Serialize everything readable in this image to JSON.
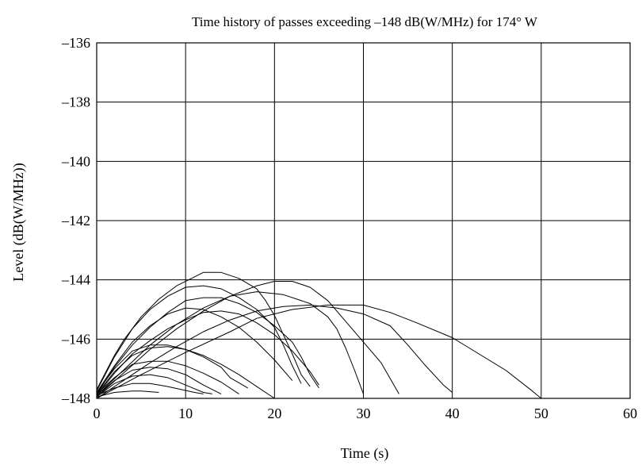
{
  "chart_data": {
    "type": "line",
    "title": "Time history of passes exceeding –148 dB(W/MHz) for 174° W",
    "xlabel": "Time (s)",
    "ylabel": "Level (dB(W/MHz))",
    "xlim": [
      0,
      60
    ],
    "ylim": [
      -148,
      -136
    ],
    "xticks": [
      0,
      10,
      20,
      30,
      40,
      50,
      60
    ],
    "yticks": [
      -148,
      -146,
      -144,
      -142,
      -140,
      -138,
      -136
    ],
    "xtick_labels": [
      "0",
      "10",
      "20",
      "30",
      "40",
      "50",
      "60"
    ],
    "ytick_labels": [
      "–148",
      "–146",
      "–144",
      "–142",
      "–140",
      "–138",
      "–136"
    ],
    "grid": true,
    "legend": "none",
    "series": [
      {
        "points": [
          [
            0,
            -147.95
          ],
          [
            2,
            -147.8
          ],
          [
            4,
            -147.75
          ],
          [
            5,
            -147.75
          ],
          [
            7,
            -147.8
          ]
        ]
      },
      {
        "points": [
          [
            0,
            -147.9
          ],
          [
            2,
            -147.65
          ],
          [
            4,
            -147.5
          ],
          [
            6,
            -147.5
          ],
          [
            8,
            -147.6
          ],
          [
            11,
            -147.8
          ],
          [
            12,
            -147.85
          ]
        ]
      },
      {
        "points": [
          [
            0,
            -147.95
          ],
          [
            2,
            -147.5
          ],
          [
            4,
            -147.25
          ],
          [
            6,
            -147.2
          ],
          [
            8,
            -147.3
          ],
          [
            10,
            -147.55
          ],
          [
            12,
            -147.8
          ],
          [
            13,
            -147.85
          ]
        ]
      },
      {
        "points": [
          [
            0,
            -147.9
          ],
          [
            2,
            -147.4
          ],
          [
            4,
            -147.05
          ],
          [
            6,
            -146.95
          ],
          [
            8,
            -147.0
          ],
          [
            10,
            -147.2
          ],
          [
            12,
            -147.55
          ],
          [
            14,
            -147.85
          ]
        ]
      },
      {
        "points": [
          [
            0,
            -147.85
          ],
          [
            2,
            -147.3
          ],
          [
            4,
            -146.85
          ],
          [
            6,
            -146.75
          ],
          [
            8,
            -146.75
          ],
          [
            10,
            -146.9
          ],
          [
            12,
            -147.15
          ],
          [
            14,
            -147.45
          ],
          [
            16,
            -147.85
          ]
        ]
      },
      {
        "points": [
          [
            0,
            -147.85
          ],
          [
            2,
            -147.1
          ],
          [
            4,
            -146.55
          ],
          [
            6,
            -146.3
          ],
          [
            8,
            -146.25
          ],
          [
            10,
            -146.35
          ],
          [
            12,
            -146.6
          ],
          [
            14,
            -146.95
          ],
          [
            15,
            -147.3
          ],
          [
            17,
            -147.65
          ]
        ]
      },
      {
        "points": [
          [
            0,
            -147.8
          ],
          [
            2,
            -147.0
          ],
          [
            4,
            -146.4
          ],
          [
            6,
            -146.2
          ],
          [
            8,
            -146.2
          ],
          [
            10,
            -146.35
          ],
          [
            12,
            -146.55
          ],
          [
            14,
            -146.85
          ],
          [
            16,
            -147.2
          ],
          [
            18,
            -147.6
          ],
          [
            20,
            -148.0
          ]
        ]
      },
      {
        "points": [
          [
            0,
            -147.8
          ],
          [
            2,
            -146.9
          ],
          [
            4,
            -146.1
          ],
          [
            6,
            -145.55
          ],
          [
            8,
            -145.15
          ],
          [
            10,
            -144.95
          ],
          [
            12,
            -145.0
          ],
          [
            14,
            -145.25
          ],
          [
            16,
            -145.6
          ],
          [
            18,
            -146.1
          ],
          [
            20,
            -146.7
          ],
          [
            22,
            -147.4
          ]
        ]
      },
      {
        "points": [
          [
            0,
            -147.9
          ],
          [
            2,
            -147.15
          ],
          [
            4,
            -146.5
          ],
          [
            6,
            -146.05
          ],
          [
            8,
            -145.65
          ],
          [
            10,
            -145.35
          ],
          [
            12,
            -145.1
          ],
          [
            14,
            -145.05
          ],
          [
            16,
            -145.15
          ],
          [
            18,
            -145.45
          ],
          [
            20,
            -145.85
          ],
          [
            22,
            -146.4
          ],
          [
            24,
            -147.1
          ],
          [
            25,
            -147.55
          ]
        ]
      },
      {
        "points": [
          [
            0,
            -147.85
          ],
          [
            2,
            -146.95
          ],
          [
            4,
            -146.2
          ],
          [
            6,
            -145.6
          ],
          [
            8,
            -145.1
          ],
          [
            10,
            -144.7
          ],
          [
            12,
            -144.6
          ],
          [
            14,
            -144.6
          ],
          [
            16,
            -144.8
          ],
          [
            18,
            -145.1
          ],
          [
            20,
            -145.55
          ],
          [
            22,
            -146.1
          ],
          [
            23,
            -146.6
          ],
          [
            24,
            -147.2
          ],
          [
            25,
            -147.65
          ]
        ]
      },
      {
        "points": [
          [
            0,
            -147.75
          ],
          [
            2,
            -146.6
          ],
          [
            4,
            -145.65
          ],
          [
            6,
            -145.0
          ],
          [
            8,
            -144.55
          ],
          [
            10,
            -144.25
          ],
          [
            12,
            -144.2
          ],
          [
            14,
            -144.3
          ],
          [
            16,
            -144.6
          ],
          [
            18,
            -145.0
          ],
          [
            20,
            -145.6
          ],
          [
            21,
            -146.2
          ],
          [
            22,
            -146.9
          ],
          [
            23,
            -147.5
          ]
        ]
      },
      {
        "points": [
          [
            0,
            -147.7
          ],
          [
            2,
            -146.55
          ],
          [
            3,
            -146.05
          ],
          [
            5,
            -145.25
          ],
          [
            7,
            -144.65
          ],
          [
            9,
            -144.2
          ],
          [
            11,
            -143.9
          ],
          [
            12,
            -143.75
          ],
          [
            14,
            -143.75
          ],
          [
            16,
            -143.95
          ],
          [
            18,
            -144.3
          ],
          [
            19,
            -144.7
          ],
          [
            20,
            -145.2
          ],
          [
            21,
            -145.85
          ],
          [
            22,
            -146.5
          ],
          [
            23,
            -147.2
          ],
          [
            24,
            -147.6
          ]
        ]
      },
      {
        "points": [
          [
            0,
            -148.0
          ],
          [
            3,
            -147.4
          ],
          [
            6,
            -146.8
          ],
          [
            9,
            -146.25
          ],
          [
            12,
            -145.75
          ],
          [
            15,
            -145.35
          ],
          [
            18,
            -145.05
          ],
          [
            21,
            -144.9
          ],
          [
            24,
            -144.85
          ],
          [
            27,
            -144.95
          ],
          [
            30,
            -145.15
          ],
          [
            33,
            -145.55
          ],
          [
            35,
            -146.2
          ],
          [
            37,
            -146.9
          ],
          [
            39,
            -147.55
          ],
          [
            40,
            -147.8
          ]
        ]
      },
      {
        "points": [
          [
            0,
            -147.95
          ],
          [
            3,
            -147.15
          ],
          [
            6,
            -146.35
          ],
          [
            9,
            -145.65
          ],
          [
            12,
            -145.05
          ],
          [
            15,
            -144.55
          ],
          [
            18,
            -144.2
          ],
          [
            20,
            -144.05
          ],
          [
            22,
            -144.05
          ],
          [
            24,
            -144.25
          ],
          [
            26,
            -144.7
          ],
          [
            28,
            -145.4
          ],
          [
            30,
            -146.1
          ],
          [
            32,
            -146.8
          ],
          [
            34,
            -147.85
          ]
        ]
      },
      {
        "points": [
          [
            0,
            -147.9
          ],
          [
            3,
            -147.05
          ],
          [
            6,
            -146.2
          ],
          [
            9,
            -145.5
          ],
          [
            12,
            -144.95
          ],
          [
            15,
            -144.55
          ],
          [
            18,
            -144.4
          ],
          [
            21,
            -144.5
          ],
          [
            24,
            -144.8
          ],
          [
            26,
            -145.25
          ],
          [
            27,
            -145.65
          ],
          [
            28,
            -146.3
          ],
          [
            29,
            -147.05
          ],
          [
            30,
            -147.85
          ]
        ]
      },
      {
        "points": [
          [
            0,
            -148.0
          ],
          [
            5,
            -147.2
          ],
          [
            10,
            -146.45
          ],
          [
            15,
            -145.75
          ],
          [
            18,
            -145.3
          ],
          [
            22,
            -145.0
          ],
          [
            26,
            -144.85
          ],
          [
            30,
            -144.85
          ],
          [
            33,
            -145.1
          ],
          [
            36,
            -145.45
          ],
          [
            40,
            -145.95
          ],
          [
            43,
            -146.5
          ],
          [
            46,
            -147.05
          ],
          [
            49,
            -147.75
          ],
          [
            50,
            -148.0
          ]
        ]
      }
    ]
  }
}
